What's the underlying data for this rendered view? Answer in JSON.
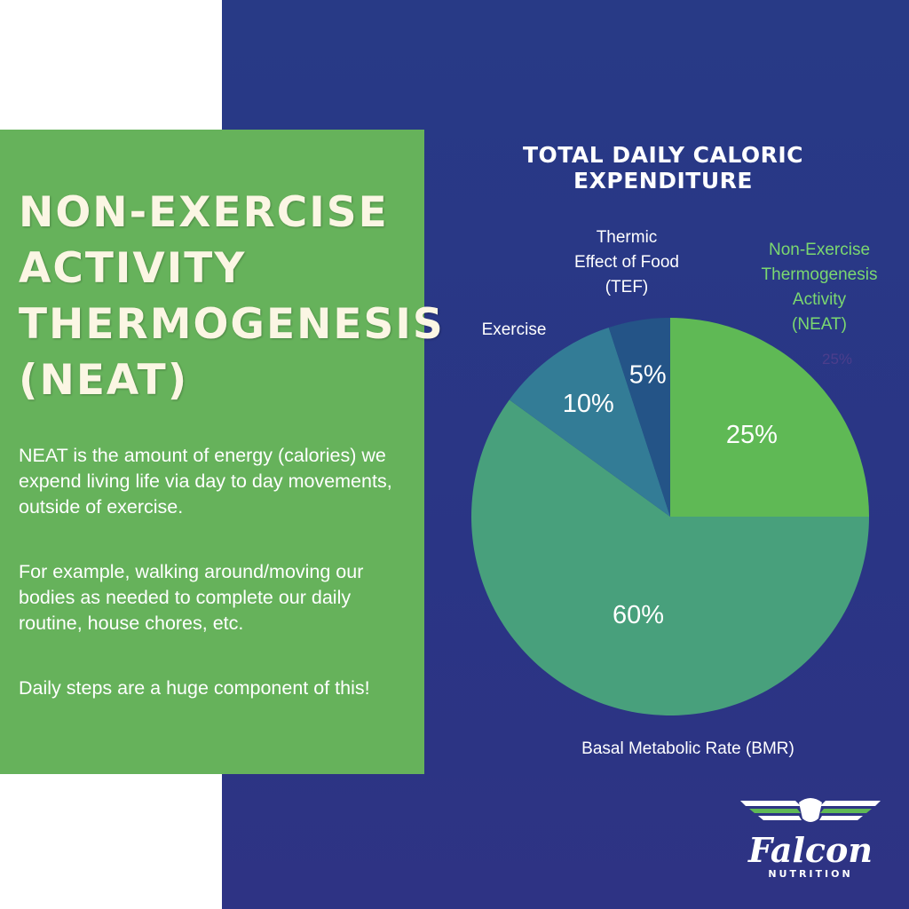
{
  "panel": {
    "heading_lines": [
      "NON-EXERCISE",
      "ACTIVITY",
      "THERMOGENESIS",
      "(NEAT)"
    ],
    "paragraphs": [
      "NEAT is the amount of energy (calories) we expend living life via day to day movements, outside of exercise.",
      "For example, walking around/moving our bodies as needed to complete our daily routine, house chores, etc.",
      "Daily steps are a huge component of this!"
    ]
  },
  "chart_data": {
    "type": "pie",
    "title": "TOTAL DAILY CALORIC EXPENDITURE",
    "slices": [
      {
        "name": "Non-Exercise Thermogenesis Activity (NEAT)",
        "value": 25,
        "label": "25%",
        "color": "#5fb955"
      },
      {
        "name": "Basal Metabolic Rate (BMR)",
        "value": 60,
        "label": "60%",
        "color": "#48a07c"
      },
      {
        "name": "Exercise",
        "value": 10,
        "label": "10%",
        "color": "#337c96"
      },
      {
        "name": "Thermic Effect of Food (TEF)",
        "value": 5,
        "label": "5%",
        "color": "#245487"
      }
    ],
    "category_labels": {
      "exercise": [
        "Exercise"
      ],
      "tef": [
        "Thermic",
        "Effect of Food",
        "(TEF)"
      ],
      "neat": [
        "Non-Exercise",
        "Thermogenesis",
        "Activity",
        "(NEAT)"
      ],
      "bmr": [
        "Basal Metabolic Rate (BMR)"
      ]
    },
    "ghost_label": "25%"
  },
  "logo": {
    "name": "Falcon",
    "subtitle": "NUTRITION"
  },
  "colors": {
    "navy": "#2a3585",
    "panel_green": "#66b25b",
    "heading_cream": "#fbf6e4",
    "neat_label_green": "#7bd870"
  }
}
